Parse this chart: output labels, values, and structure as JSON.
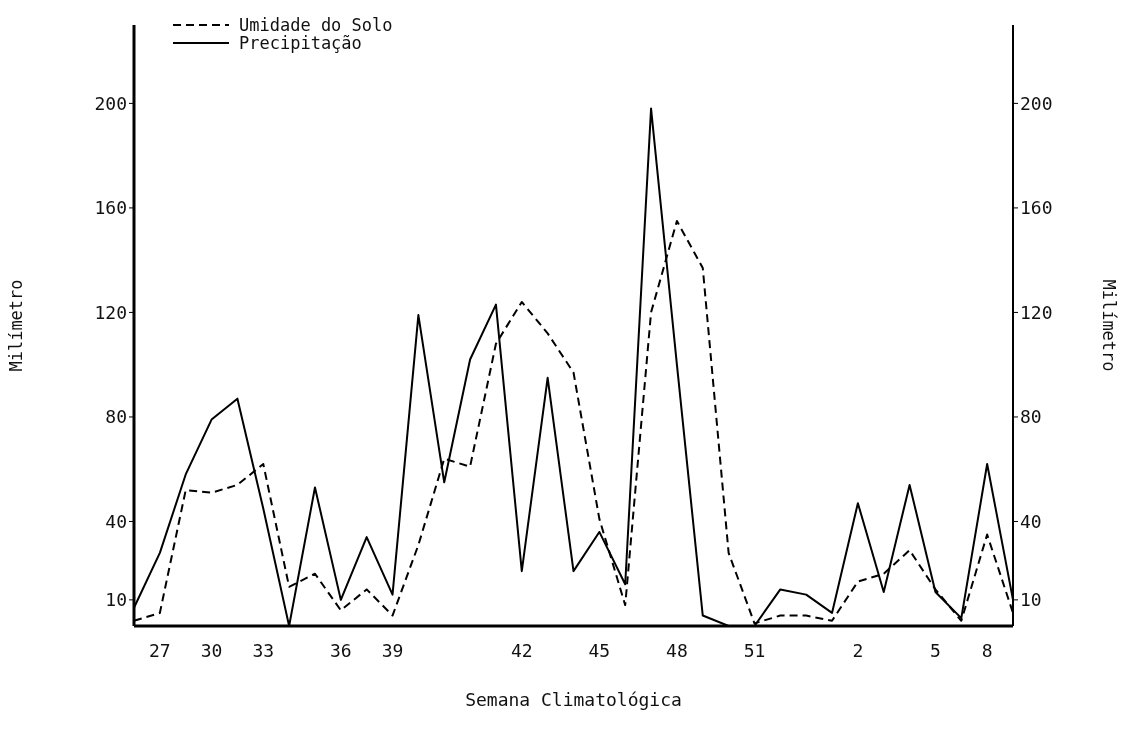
{
  "chart_data": {
    "type": "line",
    "xlabel": "Semana Climatológica",
    "ylabel": "Milímetro",
    "y2label": "Milímetro",
    "categories": [
      null,
      "27",
      null,
      "30",
      null,
      "33",
      null,
      null,
      "36",
      null,
      "39",
      null,
      null,
      null,
      null,
      "42",
      null,
      null,
      "45",
      null,
      null,
      "48",
      null,
      null,
      "51",
      null,
      null,
      null,
      "2",
      null,
      null,
      "5",
      null,
      "8",
      null
    ],
    "series": [
      {
        "name": "Umidade do Solo",
        "color": "#000000",
        "line_style": "dashed",
        "values": [
          2,
          5,
          52,
          51,
          54,
          62,
          15,
          20,
          6,
          14,
          4,
          31,
          64,
          61,
          108,
          124,
          112,
          97,
          41,
          8,
          120,
          155,
          137,
          28,
          1,
          4,
          4,
          2,
          17,
          20,
          29,
          14,
          2,
          35,
          5
        ]
      },
      {
        "name": "Precipitação",
        "color": "#000000",
        "line_style": "solid",
        "values": [
          7,
          28,
          58,
          79,
          87,
          45,
          0,
          53,
          10,
          34,
          12,
          119,
          55,
          102,
          123,
          21,
          95,
          21,
          36,
          16,
          198,
          100,
          4,
          0,
          0,
          14,
          12,
          5,
          47,
          13,
          54,
          13,
          3,
          62,
          10
        ]
      }
    ],
    "ylim": [
      0,
      230
    ],
    "yticks": [
      10,
      40,
      80,
      120,
      160,
      200
    ],
    "y2lim": [
      0,
      230
    ],
    "y2ticks": [
      10,
      40,
      80,
      120,
      160,
      200
    ],
    "grid": false,
    "legend": "top left",
    "marker": "none"
  }
}
